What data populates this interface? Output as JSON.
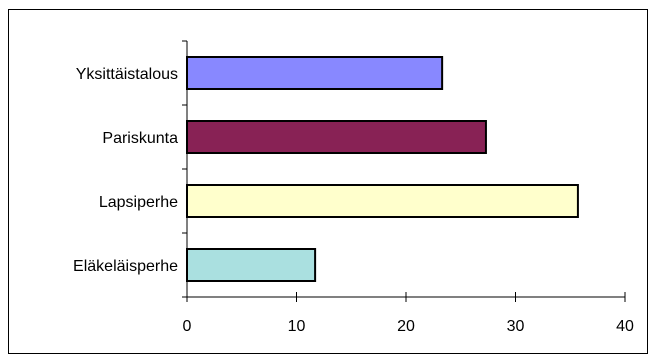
{
  "chart_data": {
    "type": "bar",
    "orientation": "horizontal",
    "categories": [
      "Yksittäistalous",
      "Pariskunta",
      "Lapsiperhe",
      "Eläkeläisperhe"
    ],
    "values": [
      23.3,
      27.3,
      35.7,
      11.7
    ],
    "colors": [
      "#8888ff",
      "#882255",
      "#ffffcc",
      "#aae0e0"
    ],
    "xlim": [
      0,
      40
    ],
    "xticks": [
      0,
      10,
      20,
      30,
      40
    ],
    "xtick_labels": [
      "0",
      "10",
      "20",
      "30",
      "40"
    ],
    "title": "",
    "xlabel": "",
    "ylabel": "",
    "grid": false,
    "legend": "none"
  }
}
